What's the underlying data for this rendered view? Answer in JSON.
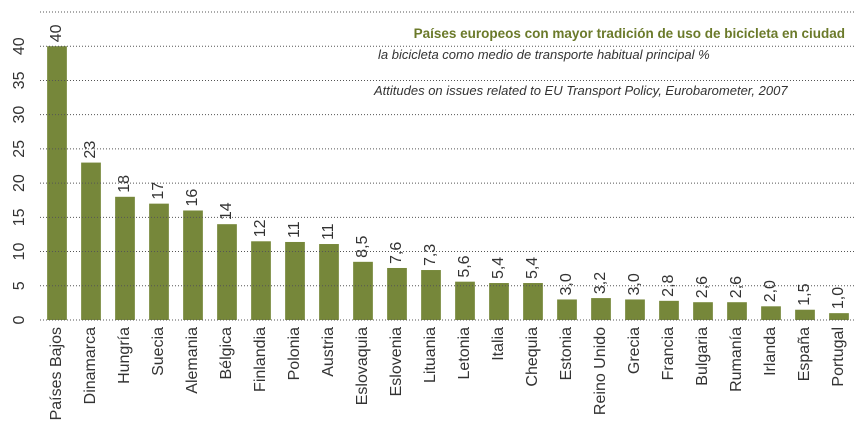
{
  "chart_data": {
    "type": "bar",
    "title": "Países europeos con mayor tradición de uso de bicicleta en ciudad",
    "subtitle": "la bicicleta como medio de transporte habitual principal %",
    "source": "Attitudes on issues related to EU Transport Policy, Eurobarometer, 2007",
    "categories": [
      "Países Bajos",
      "Dinamarca",
      "Hungría",
      "Suecia",
      "Alemania",
      "Bélgica",
      "Finlandia",
      "Polonia",
      "Austria",
      "Eslovaquia",
      "Eslovenia",
      "Lituania",
      "Letonia",
      "Italia",
      "Chequia",
      "Estonia",
      "Reino Unido",
      "Grecia",
      "Francia",
      "Bulgaria",
      "Rumanía",
      "Irlanda",
      "España",
      "Portugal"
    ],
    "values": [
      40,
      23,
      18,
      17,
      16,
      14,
      11.5,
      11.4,
      11.1,
      8.5,
      7.6,
      7.3,
      5.6,
      5.4,
      5.4,
      3.0,
      3.2,
      3.0,
      2.8,
      2.6,
      2.6,
      2.0,
      1.5,
      1.0
    ],
    "value_labels": [
      "40",
      "23",
      "18",
      "17",
      "16",
      "14",
      "12",
      "11",
      "11",
      "8,5",
      "7,6",
      "7,3",
      "5,6",
      "5,4",
      "5,4",
      "3,0",
      "3,2",
      "3,0",
      "2,8",
      "2,6",
      "2,6",
      "2,0",
      "1,5",
      "1,0"
    ],
    "color": "#76873a",
    "ylim": [
      0,
      45
    ],
    "yticks": [
      0,
      5,
      10,
      15,
      20,
      25,
      30,
      35,
      40
    ],
    "grid": true
  }
}
